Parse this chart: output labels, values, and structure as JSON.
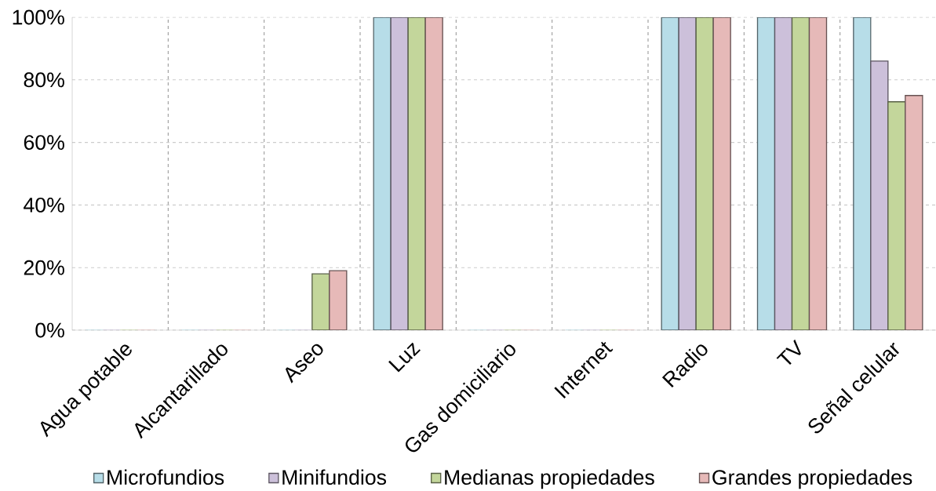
{
  "chart_data": {
    "type": "bar",
    "categories": [
      "Agua potable",
      "Alcantarillado",
      "Aseo",
      "Luz",
      "Gas domiciliario",
      "Internet",
      "Radio",
      "TV",
      "Señal celular"
    ],
    "series": [
      {
        "name": "Microfundios",
        "color": "#b7dde8",
        "values": [
          0,
          0,
          0,
          100,
          0,
          0,
          100,
          100,
          100
        ]
      },
      {
        "name": "Minifundios",
        "color": "#ccc0da",
        "values": [
          0,
          0,
          0,
          100,
          0,
          0,
          100,
          100,
          86
        ]
      },
      {
        "name": "Medianas propiedades",
        "color": "#c3d69b",
        "values": [
          0,
          0,
          18,
          100,
          0,
          0,
          100,
          100,
          73
        ]
      },
      {
        "name": "Grandes propiedades",
        "color": "#e6b9b8",
        "values": [
          0,
          0,
          19,
          100,
          0,
          0,
          100,
          100,
          75
        ]
      }
    ],
    "ylim": [
      0,
      100
    ],
    "yticks": [
      {
        "value": 0,
        "label": "0%"
      },
      {
        "value": 20,
        "label": "20%"
      },
      {
        "value": 40,
        "label": "40%"
      },
      {
        "value": 60,
        "label": "60%"
      },
      {
        "value": 80,
        "label": "80%"
      },
      {
        "value": 100,
        "label": "100%"
      }
    ],
    "grid": true,
    "legend": "bottom"
  }
}
